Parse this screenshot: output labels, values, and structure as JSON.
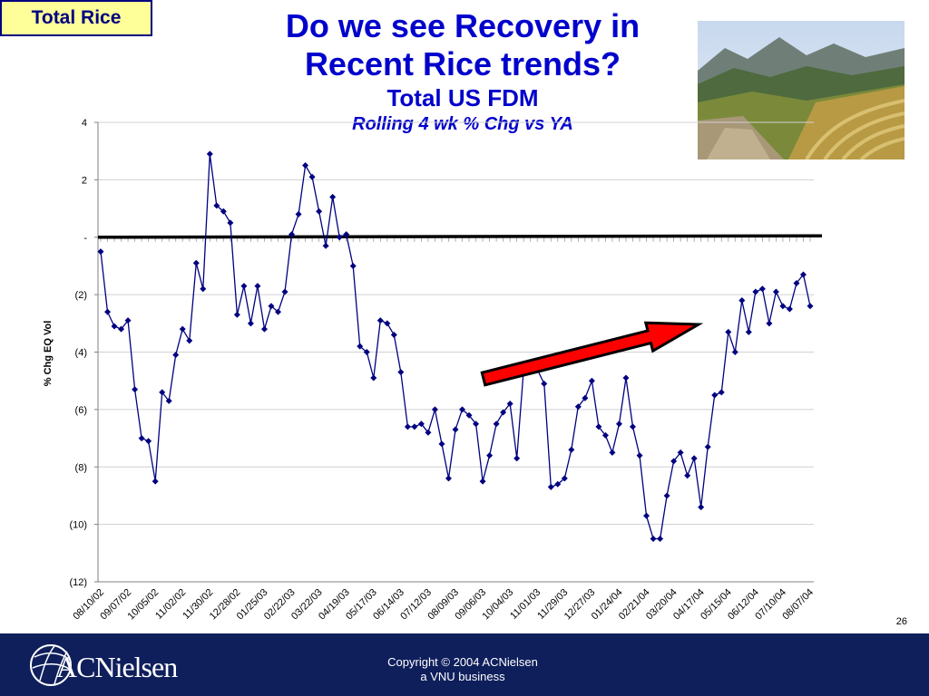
{
  "slide": {
    "tag": "Total Rice",
    "title_line1": "Do we see Recovery in",
    "title_line2": "Recent Rice trends?",
    "subtitle": "Total US FDM",
    "subsubtitle": "Rolling 4 wk % Chg vs YA",
    "page_number": "26"
  },
  "footer": {
    "logo_text": "ACNielsen",
    "copyright_line1": "Copyright © 2004 ACNielsen",
    "copyright_line2": "a VNU business"
  },
  "colors": {
    "title": "#0000cc",
    "series": "#000080",
    "arrow": "#ff0000",
    "footer": "#0f1f5c",
    "tag_bg": "#ffff99"
  },
  "chart_data": {
    "type": "line",
    "ylabel": "% Chg EQ Vol",
    "ylim": [
      -12,
      4
    ],
    "y_ticks": [
      4,
      2,
      0,
      -2,
      -4,
      -6,
      -8,
      -10,
      -12
    ],
    "y_tick_labels": [
      "4",
      "2",
      "-",
      "(2)",
      "(4)",
      "(6)",
      "(8)",
      "(10)",
      "(12)"
    ],
    "x_tick_labels": [
      "08/10/02",
      "09/07/02",
      "10/05/02",
      "11/02/02",
      "11/30/02",
      "12/28/02",
      "01/25/03",
      "02/22/03",
      "03/22/03",
      "04/19/03",
      "05/17/03",
      "06/14/03",
      "07/12/03",
      "08/09/03",
      "09/06/03",
      "10/04/03",
      "11/01/03",
      "11/29/03",
      "12/27/03",
      "01/24/04",
      "02/21/04",
      "03/20/04",
      "04/17/04",
      "05/15/04",
      "06/12/04",
      "07/10/04",
      "08/07/04"
    ],
    "grid": true,
    "annotations": [
      {
        "type": "arrow",
        "direction": "up-right",
        "color": "#ff0000"
      }
    ],
    "series": [
      {
        "values": [
          -0.5,
          -2.6,
          -3.1,
          -3.2,
          -2.9,
          -5.3,
          -7.0,
          -7.1,
          -8.5,
          -5.4,
          -5.7,
          -4.1,
          -3.2,
          -3.6,
          -0.9,
          -1.8,
          2.9,
          1.1,
          0.9,
          0.5,
          -2.7,
          -1.7,
          -3.0,
          -1.7,
          -3.2,
          -2.4,
          -2.6,
          -1.9,
          0.1,
          0.8,
          2.5,
          2.1,
          0.9,
          -0.3,
          1.4,
          0.0,
          0.1,
          -1.0,
          -3.8,
          -4.0,
          -4.9,
          -2.9,
          -3.0,
          -3.4,
          -4.7,
          -6.6,
          -6.6,
          -6.5,
          -6.8,
          -6.0,
          -7.2,
          -8.4,
          -6.7,
          -6.0,
          -6.2,
          -6.5,
          -8.5,
          -7.6,
          -6.5,
          -6.1,
          -5.8,
          -7.7,
          -4.6,
          -4.6,
          -4.6,
          -5.1,
          -8.7,
          -8.6,
          -8.4,
          -7.4,
          -5.9,
          -5.6,
          -5.0,
          -6.6,
          -6.9,
          -7.5,
          -6.5,
          -4.9,
          -6.6,
          -7.6,
          -9.7,
          -10.5,
          -10.5,
          -9.0,
          -7.8,
          -7.5,
          -8.3,
          -7.7,
          -9.4,
          -7.3,
          -5.5,
          -5.4,
          -3.3,
          -4.0,
          -2.2,
          -3.3,
          -1.9,
          -1.8,
          -3.0,
          -1.9,
          -2.4,
          -2.5,
          -1.6,
          -1.3,
          -2.4
        ]
      }
    ]
  }
}
